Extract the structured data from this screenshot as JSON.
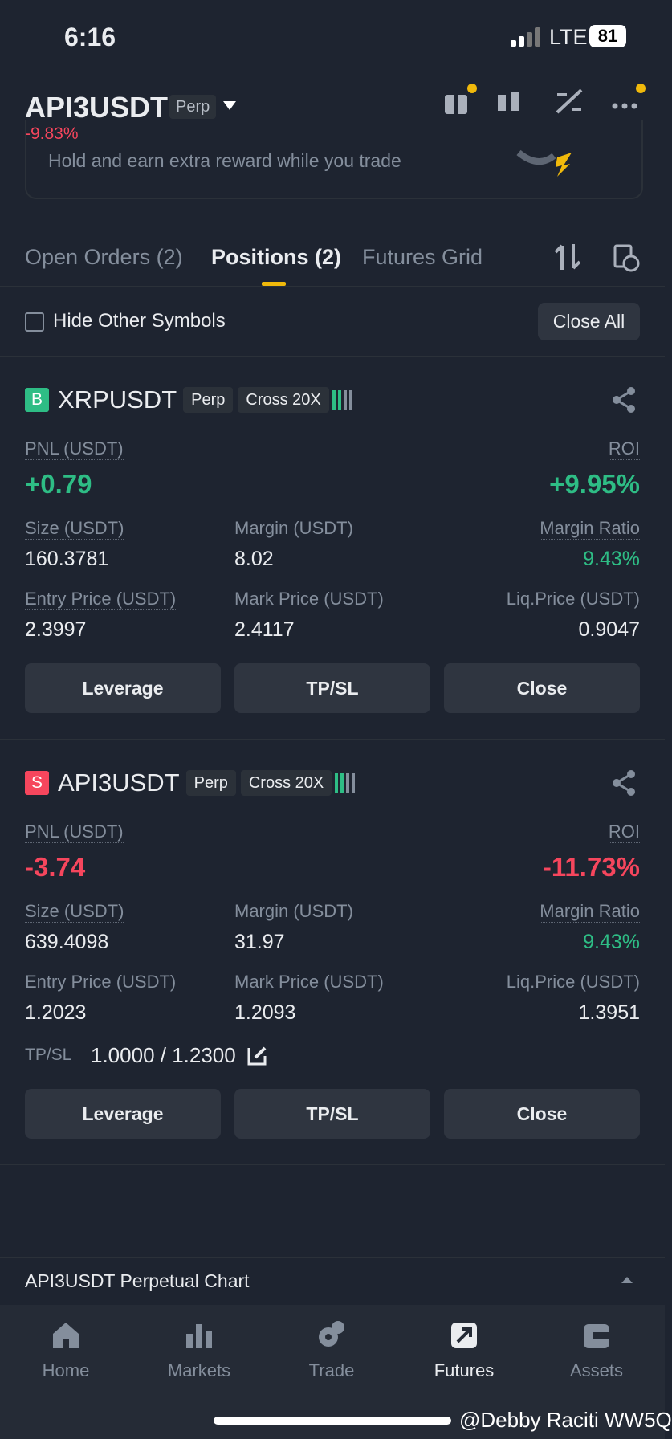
{
  "status_bar": {
    "time": "6:16",
    "network": "LTE",
    "battery": "81"
  },
  "header": {
    "symbol": "API3USDT",
    "badge": "Perp",
    "change": "-9.83%"
  },
  "banner": {
    "text": "Hold and earn extra reward while you trade"
  },
  "tabs": [
    "Open Orders (2)",
    "Positions (2)",
    "Futures Grid"
  ],
  "active_tab": 1,
  "filter": {
    "label": "Hide Other Symbols",
    "button": "Close All"
  },
  "positions": [
    {
      "side": "B",
      "color": "#2ebd85",
      "symbol": "XRPUSDT",
      "type": "Perp",
      "margin_mode": "Cross 20X",
      "pnl_label": "PNL (USDT)",
      "pnl": "+0.79",
      "roi_label": "ROI",
      "roi": "+9.95%",
      "fields": [
        {
          "label": "Size (USDT)",
          "value": "160.3781"
        },
        {
          "label": "Margin (USDT)",
          "value": "8.02"
        },
        {
          "label": "Margin Ratio",
          "value": "9.43%",
          "color": "#2ebd85"
        },
        {
          "label": "Entry Price (USDT)",
          "value": "2.3997"
        },
        {
          "label": "Mark Price (USDT)",
          "value": "2.4117"
        },
        {
          "label": "Liq.Price (USDT)",
          "value": "0.9047"
        }
      ],
      "buttons": [
        "Leverage",
        "TP/SL",
        "Close"
      ]
    },
    {
      "side": "S",
      "color": "#f6465d",
      "symbol": "API3USDT",
      "type": "Perp",
      "margin_mode": "Cross 20X",
      "pnl_label": "PNL (USDT)",
      "pnl": "-3.74",
      "roi_label": "ROI",
      "roi": "-11.73%",
      "fields": [
        {
          "label": "Size (USDT)",
          "value": "639.4098"
        },
        {
          "label": "Margin (USDT)",
          "value": "31.97"
        },
        {
          "label": "Margin Ratio",
          "value": "9.43%",
          "color": "#2ebd85"
        },
        {
          "label": "Entry Price (USDT)",
          "value": "1.2023"
        },
        {
          "label": "Mark Price (USDT)",
          "value": "1.2093"
        },
        {
          "label": "Liq.Price (USDT)",
          "value": "1.3951"
        }
      ],
      "tp_sl": {
        "label": "TP/SL",
        "value": "1.0000 / 1.2300"
      },
      "buttons": [
        "Leverage",
        "TP/SL",
        "Close"
      ]
    }
  ],
  "chart_bar": {
    "text": "API3USDT Perpetual  Chart"
  },
  "nav": [
    "Home",
    "Markets",
    "Trade",
    "Futures",
    "Assets"
  ],
  "active_nav": 3,
  "watermark": "@Debby Raciti WW5Q"
}
